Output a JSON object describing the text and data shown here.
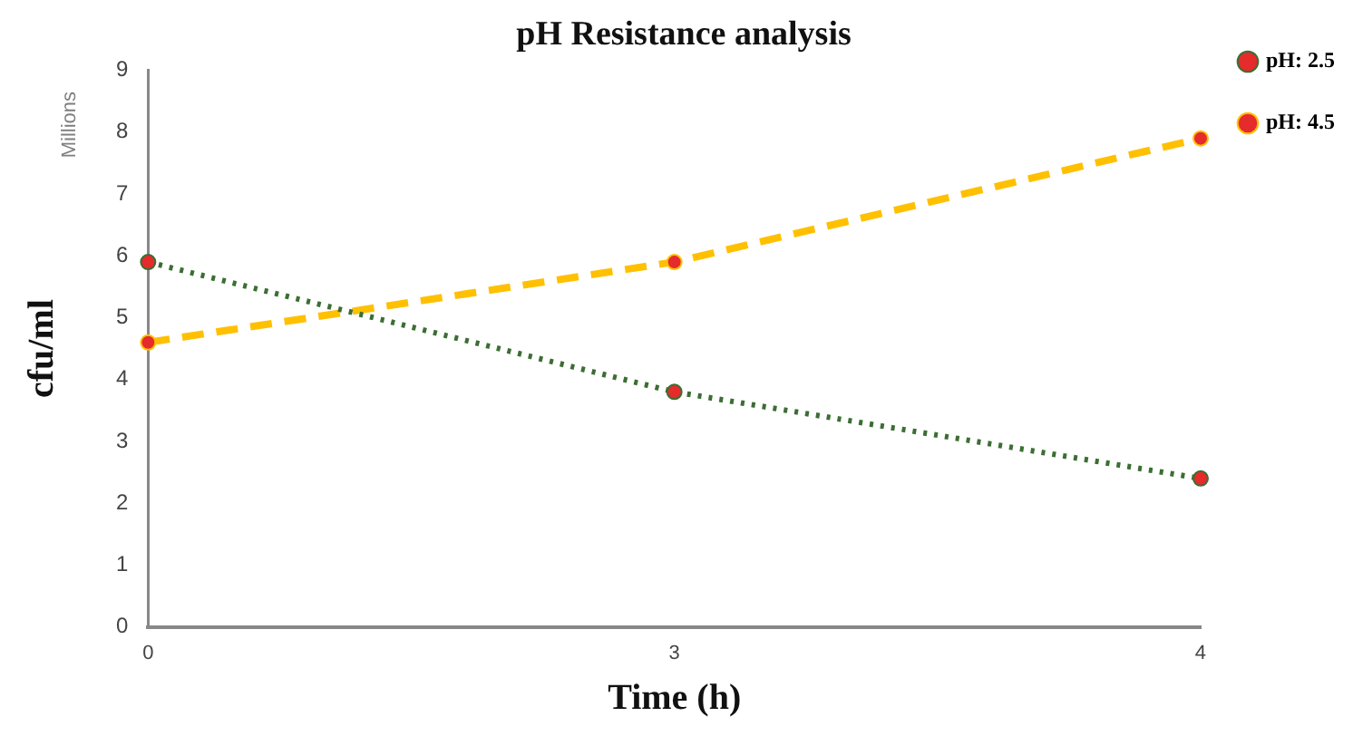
{
  "chart_data": {
    "type": "line",
    "title": "pH Resistance analysis",
    "xlabel": "Time (h)",
    "ylabel": "cfu/ml",
    "annotations": [
      "Millions"
    ],
    "categories": [
      "0",
      "3",
      "4"
    ],
    "series": [
      {
        "name": "pH: 2.5",
        "color": "#3b6e33",
        "values": [
          5.9,
          3.8,
          2.4
        ],
        "line_style": "dotted"
      },
      {
        "name": "pH: 4.5",
        "color": "#ffc000",
        "values": [
          4.6,
          5.9,
          7.9
        ],
        "line_style": "dashed"
      }
    ],
    "ylim": [
      0,
      9
    ],
    "yticks": [
      0,
      1,
      2,
      3,
      4,
      5,
      6,
      7,
      8,
      9
    ],
    "grid": false,
    "legend": "top right",
    "marker": "circle"
  }
}
